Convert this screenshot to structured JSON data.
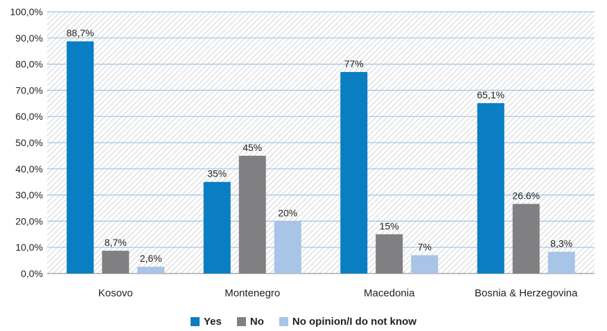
{
  "chart_data": {
    "type": "bar",
    "categories": [
      "Kosovo",
      "Montenegro",
      "Macedonia",
      "Bosnia & Herzegovina"
    ],
    "series": [
      {
        "name": "Yes",
        "color": "#0a7ec2",
        "values": [
          88.7,
          35,
          77,
          65.1
        ],
        "labels": [
          "88,7%",
          "35%",
          "77%",
          "65,1%"
        ]
      },
      {
        "name": "No",
        "color": "#808083",
        "values": [
          8.7,
          45,
          15,
          26.6
        ],
        "labels": [
          "8,7%",
          "45%",
          "15%",
          "26.6%"
        ]
      },
      {
        "name": "No opinion/I do not know",
        "color": "#a8c4e6",
        "values": [
          2.6,
          20,
          7,
          8.3
        ],
        "labels": [
          "2,6%",
          "20%",
          "7%",
          "8,3%"
        ]
      }
    ],
    "ylim": [
      0,
      100
    ],
    "yticks": [
      "0,0%",
      "10,0%",
      "20,0%",
      "30,0%",
      "40,0%",
      "50,0%",
      "60,0%",
      "70,0%",
      "80,0%",
      "90,0%",
      "100,0%"
    ],
    "grid": true,
    "legend_position": "bottom"
  }
}
